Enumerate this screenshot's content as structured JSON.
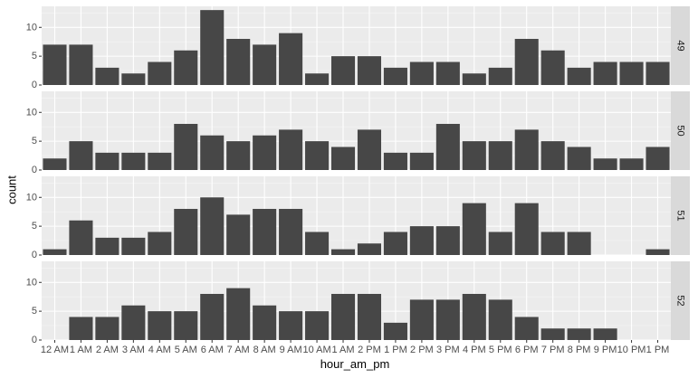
{
  "chart_data": {
    "type": "bar",
    "layout": "faceted-rows",
    "xlabel": "hour_am_pm",
    "ylabel": "count",
    "categories": [
      "12 AM",
      "1 AM",
      "2 AM",
      "3 AM",
      "4 AM",
      "5 AM",
      "6 AM",
      "7 AM",
      "8 AM",
      "9 AM",
      "10 AM",
      "1 AM",
      "2 PM",
      "1 PM",
      "2 PM",
      "3 PM",
      "4 PM",
      "5 PM",
      "6 PM",
      "7 PM",
      "8 PM",
      "9 PM",
      "10 PM",
      "1 PM"
    ],
    "y_ticks": [
      0,
      5,
      10
    ],
    "ylim": [
      0,
      13.65
    ],
    "grid": true,
    "facets": [
      {
        "strip": "49",
        "values": [
          7,
          7,
          3,
          2,
          4,
          6,
          13,
          8,
          7,
          9,
          2,
          5,
          5,
          3,
          4,
          4,
          2,
          3,
          8,
          6,
          3,
          4,
          4,
          4
        ]
      },
      {
        "strip": "50",
        "values": [
          2,
          5,
          3,
          3,
          3,
          8,
          6,
          5,
          6,
          7,
          5,
          4,
          7,
          3,
          3,
          8,
          5,
          5,
          7,
          5,
          4,
          2,
          2,
          4
        ]
      },
      {
        "strip": "51",
        "values": [
          1,
          6,
          3,
          3,
          4,
          8,
          10,
          7,
          8,
          8,
          4,
          1,
          2,
          4,
          5,
          5,
          9,
          4,
          9,
          4,
          4,
          0,
          0,
          1
        ]
      },
      {
        "strip": "52",
        "values": [
          0,
          4,
          4,
          6,
          5,
          5,
          8,
          9,
          6,
          5,
          5,
          8,
          8,
          3,
          7,
          7,
          8,
          7,
          4,
          2,
          2,
          2,
          0,
          0
        ]
      }
    ],
    "colors": {
      "bar": "#474747",
      "panel": "#ebebeb",
      "grid_major": "#ffffff",
      "grid_minor": "#f5f5f5",
      "strip": "#d9d9d9",
      "tick_label": "#4d4d4d",
      "tick_mark": "#333333"
    }
  }
}
